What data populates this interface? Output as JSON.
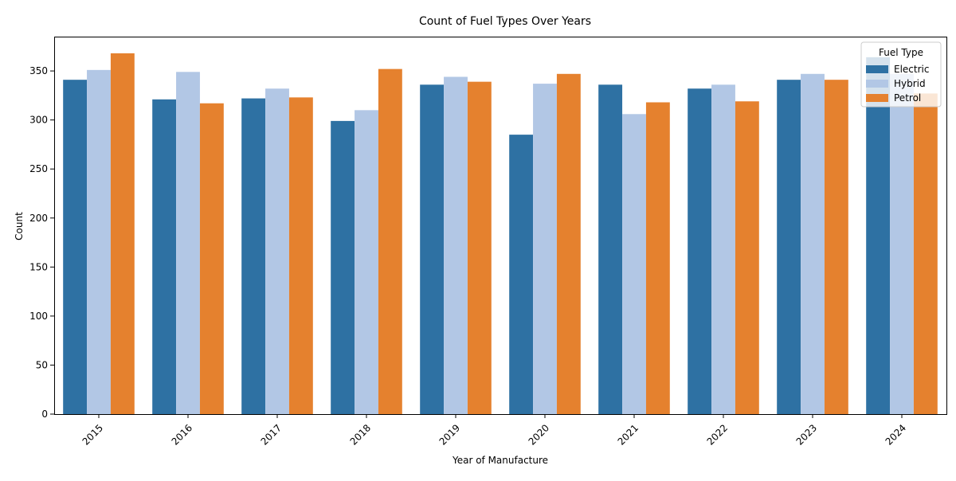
{
  "chart_data": {
    "type": "bar",
    "title": "Count of Fuel Types Over Years",
    "xlabel": "Year of Manufacture",
    "ylabel": "Count",
    "categories": [
      "2015",
      "2016",
      "2017",
      "2018",
      "2019",
      "2020",
      "2021",
      "2022",
      "2023",
      "2024"
    ],
    "series": [
      {
        "name": "Electric",
        "color": "#2e71a3",
        "values": [
          341,
          321,
          322,
          299,
          336,
          285,
          336,
          332,
          341,
          364
        ]
      },
      {
        "name": "Hybrid",
        "color": "#b2c7e5",
        "values": [
          351,
          349,
          332,
          310,
          344,
          337,
          306,
          336,
          347,
          347
        ]
      },
      {
        "name": "Petrol",
        "color": "#e5812e",
        "values": [
          368,
          317,
          323,
          352,
          339,
          347,
          318,
          319,
          341,
          327
        ]
      }
    ],
    "ylim": [
      0,
      385
    ],
    "yticks": [
      0,
      50,
      100,
      150,
      200,
      250,
      300,
      350
    ],
    "grid": false,
    "legend": {
      "title": "Fuel Type",
      "position": "top-right"
    }
  }
}
